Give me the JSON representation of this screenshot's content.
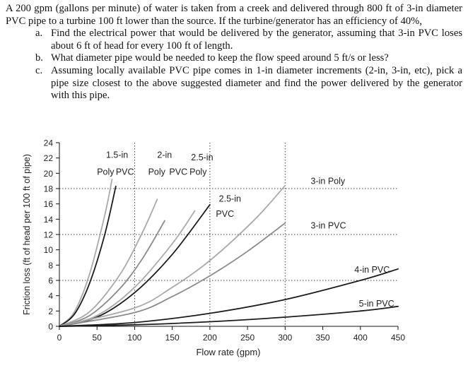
{
  "problem": {
    "intro": "A 200 gpm (gallons per minute) of water is taken from a creek and delivered through 800 ft of 3-in diameter PVC pipe to a turbine 100 ft lower than the source. If the turbine/generator has an efficiency of 40%,",
    "items": [
      {
        "marker": "a.",
        "text": "Find the electrical power that would be delivered by the generator, assuming that 3-in PVC loses about 6 ft of head for every 100 ft of length."
      },
      {
        "marker": "b.",
        "text": "What diameter pipe would be needed to keep the flow speed around 5 ft/s or less?"
      },
      {
        "marker": "c.",
        "text": "Assuming locally available PVC pipe comes in 1-in diameter increments (2-in, 3-in, etc), pick a pipe size closest to the above suggested diameter and find the power delivered by the generator with this pipe."
      }
    ]
  },
  "chart_data": {
    "type": "line",
    "title": "",
    "xlabel": "Flow rate (gpm)",
    "ylabel": "Friction loss (ft of head per 100 ft of pipe)",
    "xlim": [
      0,
      450
    ],
    "ylim": [
      0,
      24
    ],
    "xticks": [
      0,
      50,
      100,
      150,
      200,
      250,
      300,
      350,
      400,
      450
    ],
    "yticks": [
      0,
      2,
      4,
      6,
      8,
      10,
      12,
      14,
      16,
      18,
      20,
      22,
      24
    ],
    "grid": {
      "vertical_dotted_at": [
        100,
        200,
        300
      ],
      "horizontal_dotted_at": [
        6,
        12,
        18
      ]
    },
    "series": [
      {
        "name": "1.5-in Poly",
        "color": "#a9a9a9",
        "x": [
          0,
          20,
          40,
          60,
          70
        ],
        "y": [
          0,
          1.9,
          6.8,
          14.4,
          19.2
        ]
      },
      {
        "name": "1.5-in PVC",
        "color": "#1c1c1c",
        "x": [
          0,
          20,
          40,
          60,
          75
        ],
        "y": [
          0,
          1.6,
          5.6,
          11.9,
          18.3
        ]
      },
      {
        "name": "2-in Poly",
        "color": "#a9a9a9",
        "x": [
          0,
          40,
          80,
          110,
          130
        ],
        "y": [
          0,
          1.9,
          6.7,
          12.2,
          16.6
        ]
      },
      {
        "name": "2-in PVC",
        "color": "#8a8a8a",
        "x": [
          0,
          40,
          80,
          110,
          140
        ],
        "y": [
          0,
          1.4,
          4.9,
          8.8,
          13.8
        ]
      },
      {
        "name": "2.5-in Poly",
        "color": "#a9a9a9",
        "x": [
          0,
          50,
          100,
          150,
          180
        ],
        "y": [
          0,
          1.4,
          5.1,
          10.8,
          15.1
        ]
      },
      {
        "name": "2.5-in PVC",
        "color": "#1c1c1c",
        "x": [
          0,
          50,
          100,
          150,
          200
        ],
        "y": [
          0,
          1.2,
          4.4,
          9.4,
          15.9
        ]
      },
      {
        "name": "3-in Poly",
        "color": "#a9a9a9",
        "x": [
          0,
          100,
          150,
          200,
          260,
          300
        ],
        "y": [
          0,
          2.4,
          5.1,
          8.6,
          14.0,
          18.4
        ]
      },
      {
        "name": "3-in PVC",
        "color": "#8a8a8a",
        "x": [
          0,
          100,
          150,
          200,
          250,
          300
        ],
        "y": [
          0,
          1.8,
          3.9,
          6.6,
          9.8,
          13.5
        ]
      },
      {
        "name": "4-in PVC",
        "color": "#1c1c1c",
        "x": [
          0,
          100,
          200,
          300,
          400,
          450
        ],
        "y": [
          0,
          0.5,
          1.7,
          3.5,
          6.0,
          7.5
        ]
      },
      {
        "name": "5-in PVC",
        "color": "#1c1c1c",
        "x": [
          0,
          100,
          200,
          300,
          400,
          450
        ],
        "y": [
          0,
          0.2,
          0.6,
          1.2,
          2.0,
          2.6
        ]
      }
    ],
    "labels": [
      {
        "text": "1.5-in",
        "x": 62,
        "y": 22.0
      },
      {
        "text": "Poly",
        "x": 50,
        "y": 19.8
      },
      {
        "text": "PVC",
        "x": 75,
        "y": 19.8
      },
      {
        "text": "2-in",
        "x": 130,
        "y": 22.0
      },
      {
        "text": "Poly",
        "x": 118,
        "y": 19.8
      },
      {
        "text": "PVC",
        "x": 146,
        "y": 19.8
      },
      {
        "text": "2.5-in",
        "x": 175,
        "y": 21.7
      },
      {
        "text": "Poly",
        "x": 173,
        "y": 19.8
      },
      {
        "text": "2.5-in",
        "x": 212,
        "y": 16.3
      },
      {
        "text": "PVC",
        "x": 208,
        "y": 14.3
      },
      {
        "text": "3-in Poly",
        "x": 334,
        "y": 18.6
      },
      {
        "text": "3-in PVC",
        "x": 334,
        "y": 12.8
      },
      {
        "text": "4-in PVC",
        "x": 392,
        "y": 7.0
      },
      {
        "text": "5-in PVC",
        "x": 398,
        "y": 2.6
      }
    ]
  }
}
